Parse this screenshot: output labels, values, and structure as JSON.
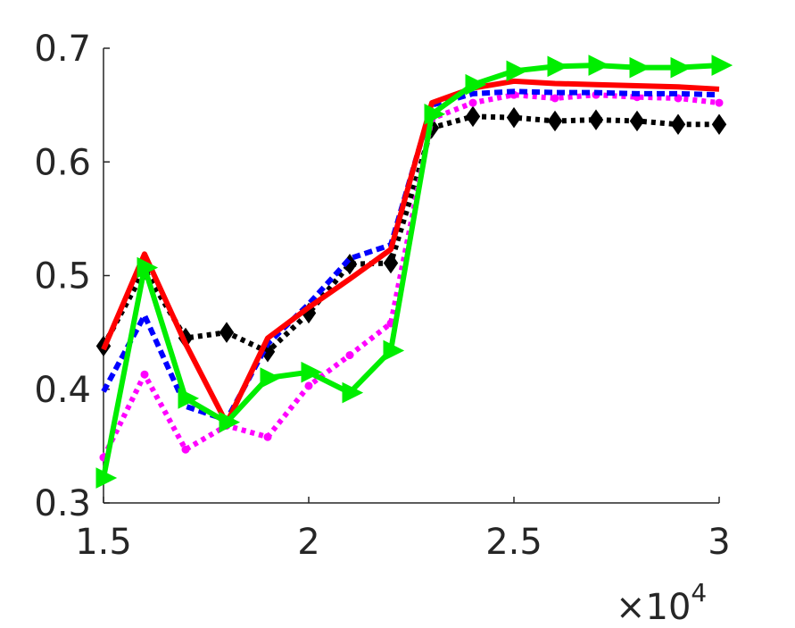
{
  "chart_data": {
    "type": "line",
    "title": "",
    "xlabel": "",
    "ylabel": "",
    "x_exponent_label": {
      "base": "×10",
      "exponent": "4"
    },
    "xlim": [
      1.5,
      3
    ],
    "ylim": [
      0.3,
      0.7
    ],
    "xticks": [
      "1.5",
      "2",
      "2.5",
      "3"
    ],
    "xtick_values": [
      1.5,
      2,
      2.5,
      3
    ],
    "yticks": [
      "0.3",
      "0.4",
      "0.5",
      "0.6",
      "0.7"
    ],
    "ytick_values": [
      0.3,
      0.4,
      0.5,
      0.6,
      0.7
    ],
    "grid": false,
    "legend": "none",
    "x": [
      1.5,
      1.6,
      1.7,
      1.8,
      1.9,
      2.0,
      2.1,
      2.2,
      2.3,
      2.4,
      2.5,
      2.6,
      2.7,
      2.8,
      2.9,
      3.0
    ],
    "series": [
      {
        "color": "#000000",
        "dash": "dotted",
        "marker": "diamond",
        "values": [
          0.438,
          0.505,
          0.445,
          0.45,
          0.433,
          0.467,
          0.51,
          0.511,
          0.63,
          0.64,
          0.639,
          0.636,
          0.637,
          0.636,
          0.633,
          0.633
        ]
      },
      {
        "color": "#ff00ff",
        "dash": "dotted",
        "marker": "circle",
        "values": [
          0.34,
          0.413,
          0.347,
          0.368,
          0.358,
          0.403,
          0.43,
          0.458,
          0.638,
          0.652,
          0.659,
          0.656,
          0.659,
          0.657,
          0.656,
          0.652
        ]
      },
      {
        "color": "#0000ff",
        "dash": "dashed",
        "marker": "none",
        "values": [
          0.398,
          0.465,
          0.385,
          0.373,
          0.44,
          0.475,
          0.515,
          0.527,
          0.65,
          0.66,
          0.662,
          0.661,
          0.661,
          0.66,
          0.66,
          0.659
        ]
      },
      {
        "color": "#ff0000",
        "dash": "solid",
        "marker": "none",
        "values": [
          0.435,
          0.519,
          0.44,
          0.37,
          0.445,
          0.472,
          0.497,
          0.523,
          0.652,
          0.665,
          0.671,
          0.669,
          0.668,
          0.667,
          0.666,
          0.664
        ]
      },
      {
        "color": "#00ee00",
        "dash": "solid",
        "marker": "triangle-right",
        "values": [
          0.322,
          0.507,
          0.392,
          0.371,
          0.41,
          0.415,
          0.397,
          0.434,
          0.642,
          0.668,
          0.68,
          0.684,
          0.685,
          0.683,
          0.683,
          0.685
        ]
      }
    ]
  }
}
